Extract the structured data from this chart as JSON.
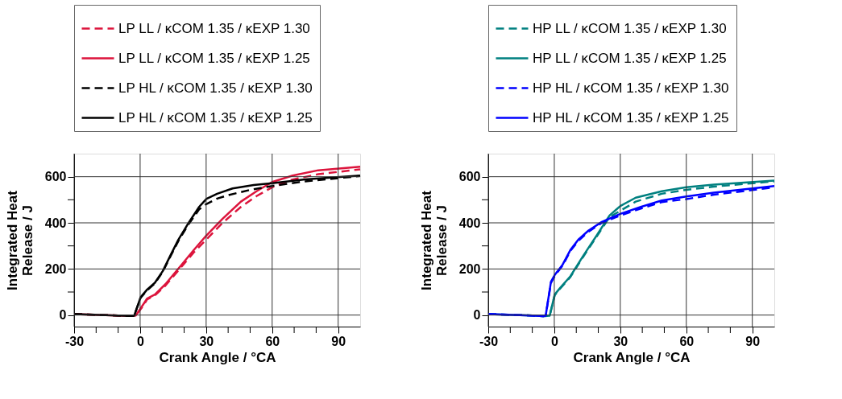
{
  "chart_data": [
    {
      "type": "line",
      "xlabel": "Crank Angle / °CA",
      "ylabel": "Integrated Heat Release / J",
      "xlim": [
        -30,
        100
      ],
      "ylim": [
        -50,
        700
      ],
      "xticks": [
        -30,
        {
          "value": -20,
          "label": null
        },
        {
          "value": -10,
          "label": null
        },
        0,
        {
          "value": 10,
          "label": null
        },
        {
          "value": 20,
          "label": null
        },
        30,
        {
          "value": 40,
          "label": null
        },
        {
          "value": 50,
          "label": null
        },
        60,
        {
          "value": 70,
          "label": null
        },
        {
          "value": 80,
          "label": null
        },
        90
      ],
      "yticks": [
        0,
        {
          "value": 100,
          "label": null
        },
        200,
        {
          "value": 300,
          "label": null
        },
        400,
        {
          "value": 500,
          "label": null
        },
        600
      ],
      "grid": true,
      "legend": "top",
      "series": [
        {
          "name": "LP LL / κCOM 1.35 / κEXP 1.30",
          "color": "#dc143c",
          "line_style": "dashed",
          "x": [
            -30,
            -10,
            -4,
            -2,
            0.8,
            3.2,
            6.7,
            11.5,
            18.5,
            24.4,
            30,
            37.5,
            45.8,
            52.9,
            60,
            69.3,
            81,
            100
          ],
          "values": [
            4,
            -2,
            -4,
            -2,
            33,
            68,
            85,
            128,
            206,
            272,
            327,
            400,
            469,
            516,
            554,
            588,
            611,
            632
          ]
        },
        {
          "name": "LP LL / κCOM 1.35 / κEXP 1.25",
          "color": "#dc143c",
          "line_style": "solid",
          "x": [
            -30,
            -10,
            -4,
            -2,
            0.8,
            3.2,
            6.7,
            11.5,
            18.5,
            24.4,
            30,
            37.5,
            45.8,
            52.9,
            60,
            69.3,
            81,
            100
          ],
          "values": [
            4,
            -2,
            -4,
            -2,
            37,
            72,
            89,
            134,
            214,
            282,
            344,
            418,
            492,
            537,
            577,
            605,
            628,
            643
          ]
        },
        {
          "name": "LP HL / κCOM 1.35 / κEXP 1.30",
          "color": "#000000",
          "line_style": "dashed",
          "x": [
            -30,
            -10,
            -4,
            -2.7,
            0.2,
            3.2,
            6.7,
            10.3,
            13.8,
            17.4,
            22.1,
            26.8,
            30,
            35,
            40,
            50,
            60,
            75,
            100
          ],
          "values": [
            4,
            -2,
            -4,
            -3,
            75,
            108,
            137,
            188,
            255,
            322,
            395,
            458,
            481,
            505,
            520,
            543,
            560,
            580,
            603
          ]
        },
        {
          "name": "LP HL / κCOM 1.35 / κEXP 1.25",
          "color": "#000000",
          "line_style": "solid",
          "x": [
            -30,
            -10,
            -4,
            -2.7,
            0.2,
            3.2,
            6.7,
            10.3,
            13.8,
            17.4,
            22.1,
            26.8,
            30,
            35,
            42,
            51.6,
            60,
            75,
            100
          ],
          "values": [
            4,
            -2,
            -4,
            -3,
            77,
            111,
            140,
            191,
            259,
            327,
            401,
            469,
            503,
            526,
            549,
            564,
            572,
            588,
            605
          ]
        }
      ]
    },
    {
      "type": "line",
      "xlabel": "Crank Angle / °CA",
      "ylabel": "Integrated Heat Release / J",
      "xlim": [
        -30,
        100
      ],
      "ylim": [
        -50,
        700
      ],
      "xticks": [
        -30,
        {
          "value": -20,
          "label": null
        },
        {
          "value": -10,
          "label": null
        },
        0,
        {
          "value": 10,
          "label": null
        },
        {
          "value": 20,
          "label": null
        },
        30,
        {
          "value": 40,
          "label": null
        },
        {
          "value": 50,
          "label": null
        },
        60,
        {
          "value": 70,
          "label": null
        },
        {
          "value": 80,
          "label": null
        },
        90
      ],
      "yticks": [
        0,
        {
          "value": 100,
          "label": null
        },
        200,
        {
          "value": 300,
          "label": null
        },
        400,
        {
          "value": 500,
          "label": null
        },
        600
      ],
      "grid": true,
      "legend": "top",
      "series": [
        {
          "name": "HP LL / κCOM 1.35 / κEXP 1.30",
          "color": "#008080",
          "line_style": "dashed",
          "x": [
            -30,
            -10,
            -5,
            -2.1,
            0.2,
            2.6,
            7.3,
            13.3,
            19.2,
            25.1,
            30,
            37,
            48.8,
            60,
            72.5,
            100
          ],
          "values": [
            4,
            -2,
            -5,
            -3,
            86,
            114,
            165,
            255,
            340,
            425,
            452,
            492,
            526,
            543,
            557,
            580
          ]
        },
        {
          "name": "HP LL / κCOM 1.35 / κEXP 1.25",
          "color": "#008080",
          "line_style": "solid",
          "x": [
            -30,
            -10,
            -5,
            -2.1,
            0.2,
            2.6,
            7.3,
            13.3,
            19.2,
            25.1,
            30,
            37,
            48.8,
            60,
            72.5,
            100
          ],
          "values": [
            4,
            -2,
            -5,
            -3,
            89,
            117,
            168,
            259,
            344,
            432,
            473,
            509,
            537,
            554,
            566,
            583
          ]
        },
        {
          "name": "HP HL / κCOM 1.35 / κEXP 1.30",
          "color": "#0000ff",
          "line_style": "dashed",
          "x": [
            -30,
            -10,
            -5,
            -3.9,
            -1.5,
            0.2,
            3.8,
            7.3,
            10.9,
            15.6,
            21.6,
            30,
            39.3,
            48.8,
            60,
            72.5,
            100
          ],
          "values": [
            4,
            -2,
            -5,
            -2,
            140,
            170,
            215,
            278,
            322,
            362,
            400,
            432,
            462,
            490,
            503,
            522,
            554
          ]
        },
        {
          "name": "HP HL / κCOM 1.35 / κEXP 1.25",
          "color": "#0000ff",
          "line_style": "solid",
          "x": [
            -30,
            -10,
            -5,
            -3.9,
            -1.5,
            0.2,
            3.8,
            7.3,
            10.9,
            15.6,
            21.6,
            30,
            39.3,
            48.8,
            60,
            72.5,
            100
          ],
          "values": [
            4,
            -2,
            -5,
            -2,
            145,
            174,
            219,
            282,
            327,
            367,
            404,
            439,
            469,
            497,
            514,
            531,
            560
          ]
        }
      ]
    }
  ]
}
